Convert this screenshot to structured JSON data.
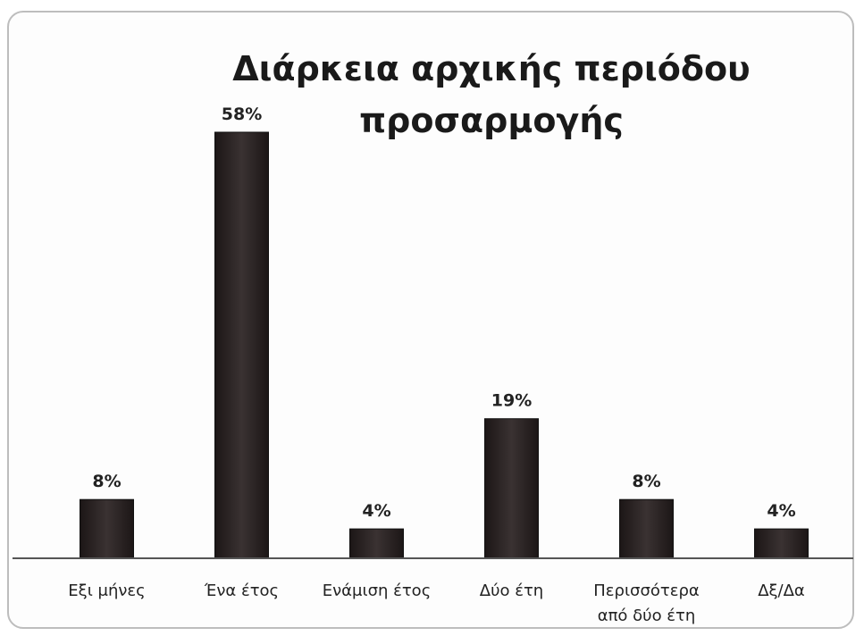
{
  "chart_data": {
    "type": "bar",
    "title": "Διάρκεια αρχικής περιόδου\nπροσαρμογής",
    "categories": [
      [
        "Εξι μήνες"
      ],
      [
        "Ένα έτος"
      ],
      [
        "Ενάμιση έτος"
      ],
      [
        "Δύο έτη"
      ],
      [
        "Περισσότερα",
        "από δύο έτη"
      ],
      [
        "Δξ/Δα"
      ]
    ],
    "values": [
      8,
      58,
      4,
      19,
      8,
      4
    ],
    "value_labels": [
      "8%",
      "58%",
      "4%",
      "19%",
      "8%",
      "4%"
    ],
    "ylim": [
      0,
      58
    ],
    "grid": false,
    "legend": "none",
    "bar_color": "#2e2626",
    "axis_color": "#555555"
  }
}
